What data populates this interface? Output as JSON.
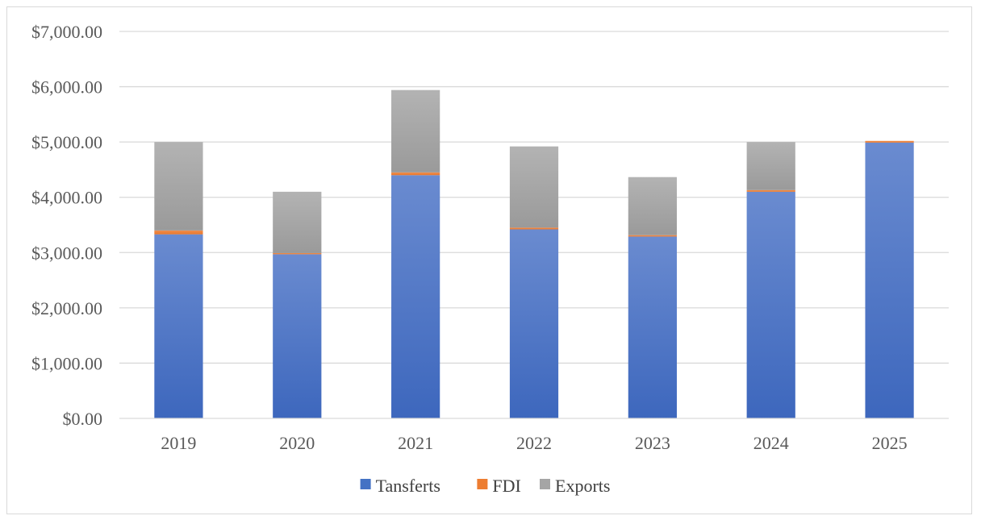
{
  "chart_data": {
    "type": "bar",
    "stacked": true,
    "title": "",
    "xlabel": "",
    "ylabel": "",
    "ylim": [
      0,
      7000
    ],
    "y_tick_step": 1000,
    "y_tick_labels": [
      "$0.00",
      "$1,000.00",
      "$2,000.00",
      "$3,000.00",
      "$4,000.00",
      "$5,000.00",
      "$6,000.00",
      "$7,000.00"
    ],
    "categories": [
      "2019",
      "2020",
      "2021",
      "2022",
      "2023",
      "2024",
      "2025"
    ],
    "series": [
      {
        "name": "Tansferts",
        "color": "#4472c4",
        "values": [
          3330,
          2970,
          4400,
          3420,
          3290,
          4100,
          4990
        ]
      },
      {
        "name": "FDI",
        "color": "#ed7d31",
        "values": [
          70,
          20,
          50,
          30,
          25,
          30,
          30
        ]
      },
      {
        "name": "Exports",
        "color": "#a5a5a5",
        "values": [
          1600,
          1110,
          1490,
          1470,
          1050,
          870,
          0
        ]
      }
    ],
    "grid": true,
    "legend_position": "bottom"
  }
}
